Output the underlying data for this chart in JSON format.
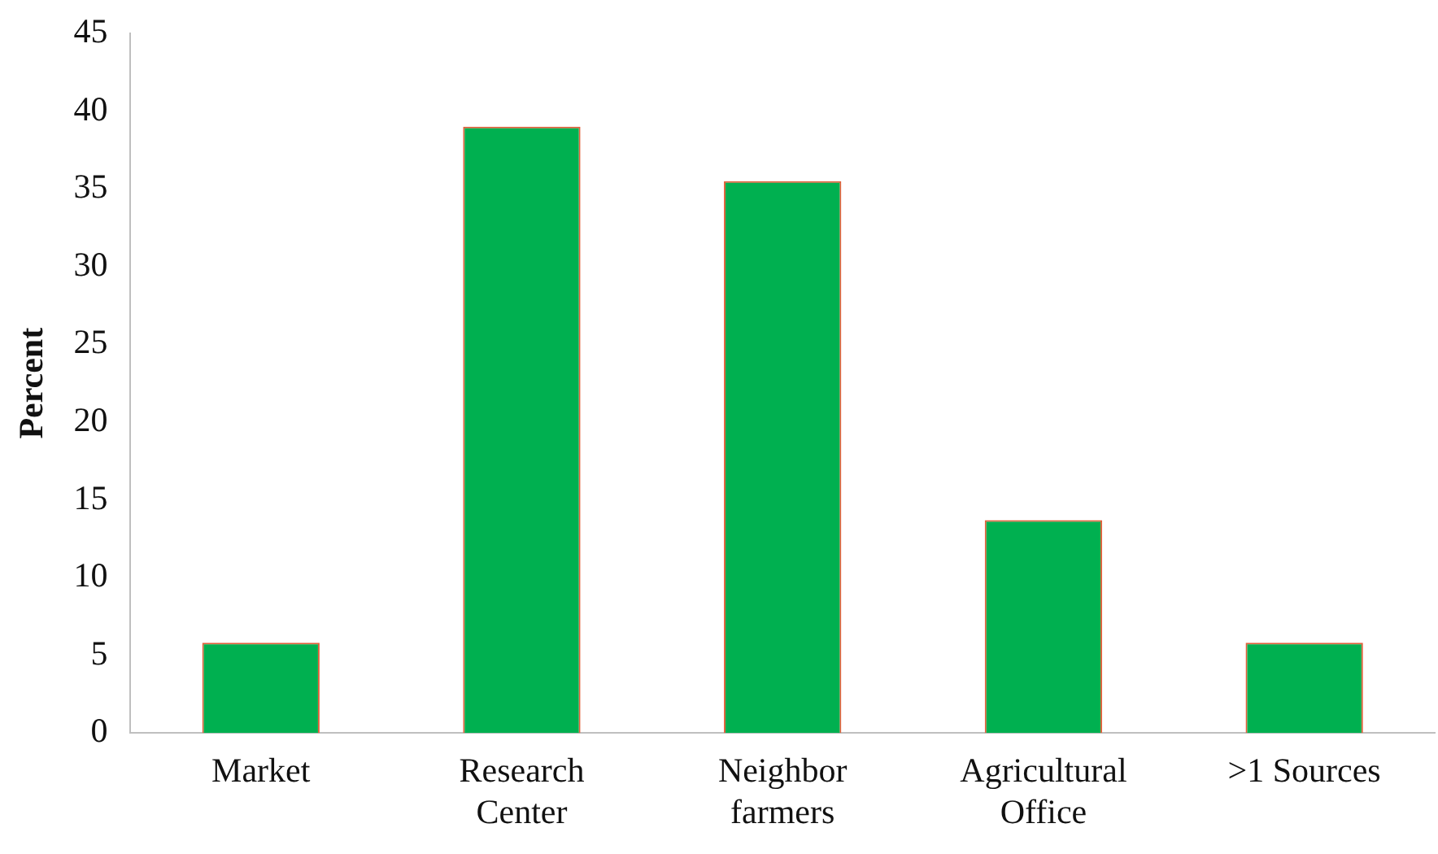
{
  "chart_data": {
    "type": "bar",
    "ylabel": "Percent",
    "categories": [
      "Market",
      "Research\nCenter",
      "Neighbor\nfarmers",
      "Agricultural\nOffice",
      ">1 Sources"
    ],
    "values": [
      5.8,
      39.0,
      35.5,
      13.7,
      5.8
    ],
    "color": "#00b050",
    "ylim": [
      0,
      45
    ],
    "yticks": [
      0,
      5,
      10,
      15,
      20,
      25,
      30,
      35,
      40,
      45
    ],
    "grid": false,
    "legend": false
  }
}
